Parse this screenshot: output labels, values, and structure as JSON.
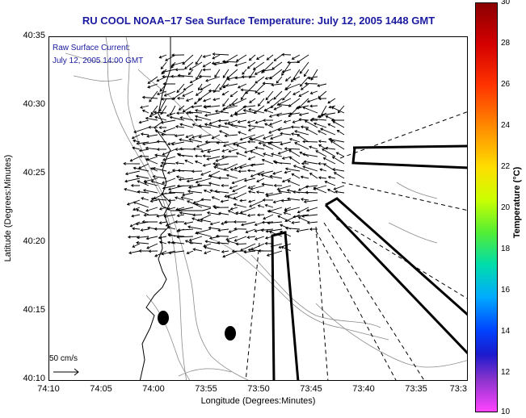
{
  "title": "RU COOL  NOAA−17  Sea Surface Temperature:  July 12, 2005 1448 GMT",
  "overlay": {
    "current_label": "Raw Surface Current:",
    "current_date": "July 12, 2005 14:00 GMT",
    "scale_label": "50 cm/s"
  },
  "axes": {
    "xlabel": "Longitude (Degrees:Minutes)",
    "ylabel": "Latitude (Degrees:Minutes)",
    "xticks": [
      "74:10",
      "74:05",
      "74:00",
      "73:55",
      "73:50",
      "73:45",
      "73:40",
      "73:35",
      "73:3"
    ],
    "yticks": [
      "40:35",
      "40:30",
      "40:25",
      "40:20",
      "40:15",
      "40:10"
    ]
  },
  "colorbar": {
    "label": "Temperature (°C)",
    "ticks": [
      "30",
      "28",
      "26",
      "24",
      "22",
      "20",
      "18",
      "16",
      "14",
      "12",
      "10"
    ],
    "min": 10,
    "max": 30
  },
  "map": {
    "vector_color": "#000000",
    "coastline_color": "#000000",
    "contour_color": "#888888"
  }
}
